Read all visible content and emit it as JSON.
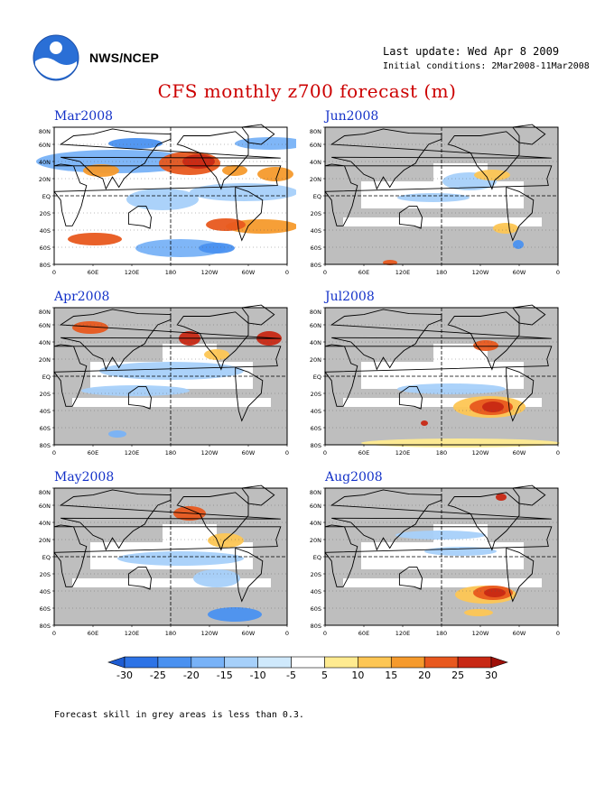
{
  "header": {
    "agency": "NWS/NCEP",
    "last_update": "Last update: Wed Apr 8 2009",
    "initial_conditions": "Initial conditions: 2Mar2008-11Mar2008",
    "logo_icon": "noaa-logo-icon"
  },
  "title": "CFS monthly z700 forecast (m)",
  "panels": [
    {
      "label": "Mar2008",
      "mostly_grey": false
    },
    {
      "label": "Jun2008",
      "mostly_grey": true
    },
    {
      "label": "Apr2008",
      "mostly_grey": true
    },
    {
      "label": "Jul2008",
      "mostly_grey": true
    },
    {
      "label": "May2008",
      "mostly_grey": true
    },
    {
      "label": "Aug2008",
      "mostly_grey": true
    }
  ],
  "axes": {
    "lat_labels": [
      "80N",
      "60N",
      "40N",
      "20N",
      "EQ",
      "20S",
      "40S",
      "60S",
      "80S"
    ],
    "lon_labels": [
      "0",
      "60E",
      "120E",
      "180",
      "120W",
      "60W",
      "0"
    ]
  },
  "colorbar": {
    "levels": [
      "-30",
      "-25",
      "-20",
      "-15",
      "-10",
      "-5",
      "5",
      "10",
      "15",
      "20",
      "25",
      "30"
    ],
    "colors": [
      "#1e5cd2",
      "#2d73e6",
      "#4a91f0",
      "#78b2f7",
      "#a6d0fa",
      "#cfe9fc",
      "#ffffff",
      "#ffeb90",
      "#fdc654",
      "#f59a2c",
      "#e8581e",
      "#c82814",
      "#9e1008"
    ]
  },
  "footer": {
    "skill_note": "Forecast skill in grey areas is less than 0.3."
  },
  "colors": {
    "title": "#cc0000",
    "panel_title": "#1432c8",
    "low_skill_grey": "#bebebe"
  }
}
